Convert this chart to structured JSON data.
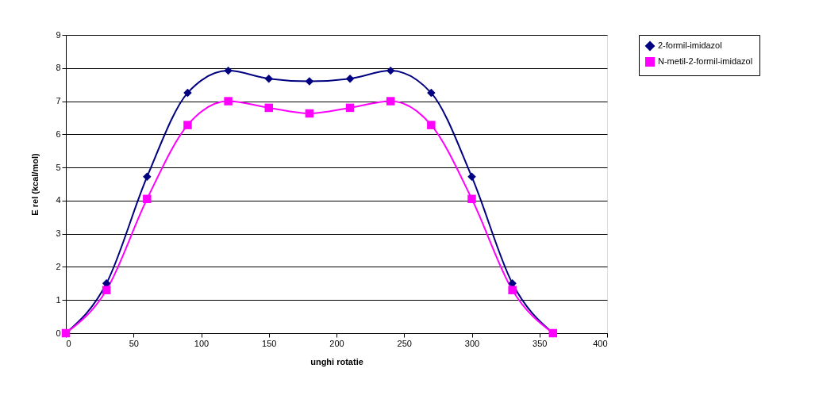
{
  "chart_data": {
    "type": "line",
    "xlabel": "unghi rotatie",
    "ylabel": "E rel (kcal/mol)",
    "x": [
      0,
      30,
      60,
      90,
      120,
      150,
      180,
      210,
      240,
      270,
      300,
      330,
      360
    ],
    "series": [
      {
        "name": "2-formil-imidazol",
        "color": "#000080",
        "marker": "diamond",
        "values": [
          0,
          1.5,
          4.72,
          7.25,
          7.92,
          7.68,
          7.6,
          7.68,
          7.92,
          7.25,
          4.72,
          1.5,
          0
        ]
      },
      {
        "name": "N-metil-2-formil-imidazol",
        "color": "#ff00ff",
        "marker": "square",
        "values": [
          0,
          1.3,
          4.05,
          6.28,
          7.0,
          6.8,
          6.63,
          6.8,
          7.0,
          6.28,
          4.05,
          1.3,
          0
        ]
      }
    ],
    "xlim": [
      0,
      400
    ],
    "xticks": [
      0,
      50,
      100,
      150,
      200,
      250,
      300,
      350,
      400
    ],
    "ylim": [
      0,
      9
    ],
    "yticks": [
      0,
      1,
      2,
      3,
      4,
      5,
      6,
      7,
      8,
      9
    ],
    "grid": "y",
    "legend": "right",
    "line_style": "solid"
  }
}
